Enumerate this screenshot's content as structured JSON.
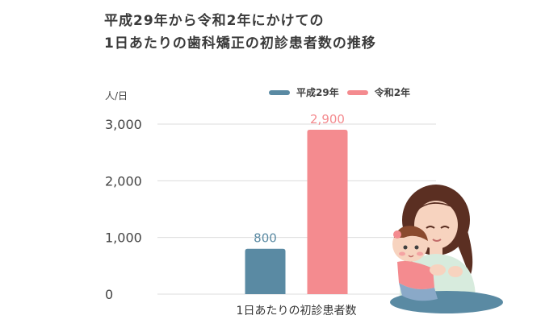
{
  "chart_data": {
    "type": "bar",
    "title": [
      "平成29年から令和2年にかけての",
      "1日あたりの歯科矯正の初診患者数の推移"
    ],
    "ylabel": "人/日",
    "categories": [
      "1日あたりの初診患者数"
    ],
    "series": [
      {
        "name": "平成29年",
        "values": [
          800
        ],
        "color": "#5a8aa3",
        "label": "800"
      },
      {
        "name": "令和2年",
        "values": [
          2900
        ],
        "color": "#f48b8f",
        "label": "2,900"
      }
    ],
    "ylim": [
      0,
      3000
    ],
    "yticks": [
      {
        "value": 0,
        "label": "0"
      },
      {
        "value": 1000,
        "label": "1,000"
      },
      {
        "value": 2000,
        "label": "2,000"
      },
      {
        "value": 3000,
        "label": "3,000"
      }
    ],
    "grid": true,
    "legend_position": "top-right"
  }
}
